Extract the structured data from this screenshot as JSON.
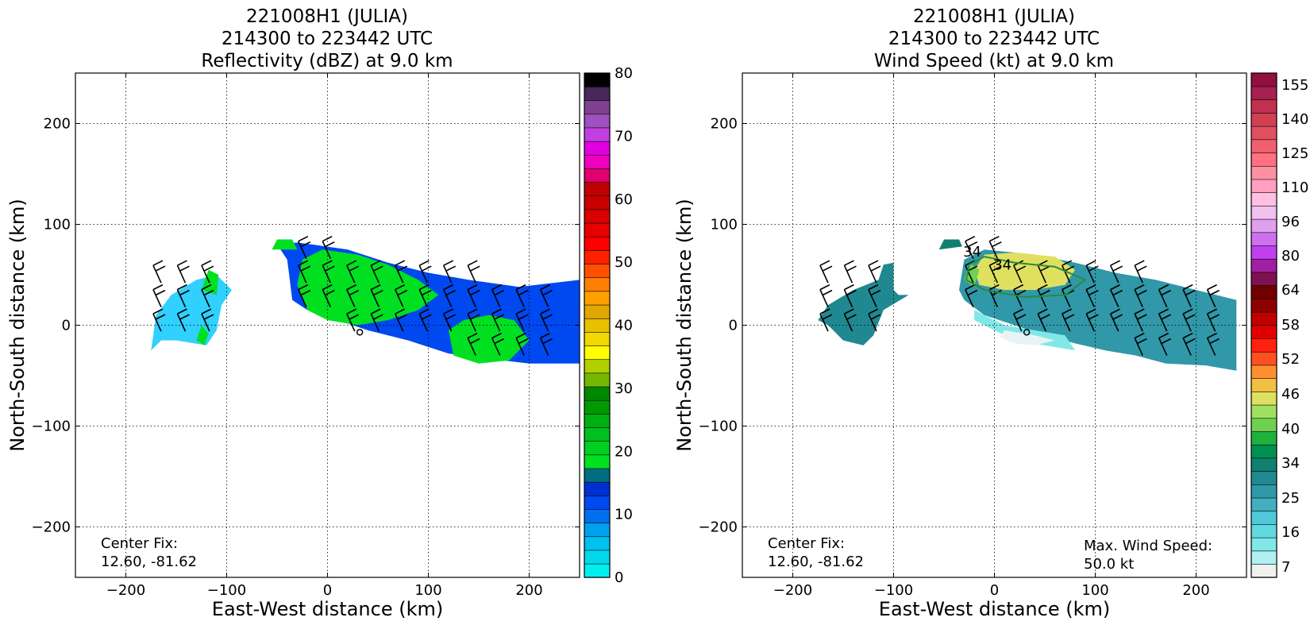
{
  "chart_data": [
    {
      "type": "heatmap",
      "title_lines": [
        "221008H1 (JULIA)",
        "214300 to 223442 UTC",
        "Reflectivity (dBZ) at 9.0 km"
      ],
      "xlabel": "East-West distance (km)",
      "ylabel": "North-South distance (km)",
      "xlim": [
        -250,
        250
      ],
      "ylim": [
        -250,
        250
      ],
      "x_ticks": [
        -200,
        -100,
        0,
        100,
        200
      ],
      "y_ticks": [
        -200,
        -100,
        0,
        100,
        200
      ],
      "grid": true,
      "annotations": [
        "Center Fix:",
        "12.60, -81.62"
      ],
      "colorbar": {
        "ticks": [
          0,
          10,
          20,
          30,
          40,
          50,
          60,
          70,
          80
        ],
        "colors": [
          "#00f0f0",
          "#00d8ec",
          "#00c0f0",
          "#00a0f0",
          "#0070f0",
          "#0048f0",
          "#0030d0",
          "#006e7e",
          "#00e020",
          "#00d020",
          "#00c020",
          "#00b010",
          "#009a00",
          "#008800",
          "#76b800",
          "#b0d000",
          "#ffff00",
          "#f0d800",
          "#e8c000",
          "#e0a800",
          "#ffa000",
          "#ff8000",
          "#ff5000",
          "#ff2000",
          "#ff0000",
          "#e80000",
          "#d80000",
          "#c80000",
          "#c00000",
          "#e00070",
          "#f000c0",
          "#e000e0",
          "#c040e0",
          "#a050c0",
          "#804090",
          "#482858",
          "#000000"
        ]
      },
      "regions": [
        {
          "name": "left-blob",
          "fill": "#30d0ff",
          "points": [
            [
              -175,
              -25
            ],
            [
              -170,
              10
            ],
            [
              -155,
              30
            ],
            [
              -130,
              45
            ],
            [
              -110,
              50
            ],
            [
              -95,
              35
            ],
            [
              -105,
              20
            ],
            [
              -110,
              -5
            ],
            [
              -120,
              -20
            ],
            [
              -150,
              -15
            ],
            [
              -165,
              -15
            ]
          ]
        },
        {
          "name": "left-core",
          "fill": "#00e020",
          "points": [
            [
              -125,
              35
            ],
            [
              -118,
              55
            ],
            [
              -108,
              50
            ],
            [
              -110,
              30
            ]
          ]
        },
        {
          "name": "left-core-2",
          "fill": "#00e020",
          "points": [
            [
              -130,
              -15
            ],
            [
              -125,
              0
            ],
            [
              -118,
              -8
            ],
            [
              -122,
              -20
            ]
          ]
        },
        {
          "name": "main-blue",
          "fill": "#0048f0",
          "points": [
            [
              -40,
              65
            ],
            [
              -50,
              80
            ],
            [
              -30,
              82
            ],
            [
              -15,
              80
            ],
            [
              20,
              75
            ],
            [
              60,
              62
            ],
            [
              100,
              52
            ],
            [
              140,
              45
            ],
            [
              190,
              38
            ],
            [
              250,
              45
            ],
            [
              250,
              -38
            ],
            [
              200,
              -38
            ],
            [
              150,
              -32
            ],
            [
              120,
              -28
            ],
            [
              80,
              -15
            ],
            [
              40,
              -5
            ],
            [
              10,
              5
            ],
            [
              -20,
              15
            ],
            [
              -35,
              25
            ],
            [
              -38,
              50
            ]
          ]
        },
        {
          "name": "main-green",
          "fill": "#00e020",
          "points": [
            [
              -30,
              40
            ],
            [
              -25,
              65
            ],
            [
              -5,
              75
            ],
            [
              30,
              70
            ],
            [
              60,
              60
            ],
            [
              90,
              45
            ],
            [
              110,
              30
            ],
            [
              90,
              15
            ],
            [
              60,
              5
            ],
            [
              30,
              0
            ],
            [
              0,
              5
            ],
            [
              -20,
              15
            ]
          ]
        },
        {
          "name": "east-green",
          "fill": "#00e020",
          "points": [
            [
              120,
              -5
            ],
            [
              135,
              5
            ],
            [
              160,
              10
            ],
            [
              185,
              5
            ],
            [
              200,
              -15
            ],
            [
              180,
              -35
            ],
            [
              150,
              -38
            ],
            [
              125,
              -30
            ]
          ]
        },
        {
          "name": "north-green-patch",
          "fill": "#00e020",
          "points": [
            [
              -55,
              75
            ],
            [
              -50,
              85
            ],
            [
              -35,
              85
            ],
            [
              -30,
              75
            ]
          ]
        }
      ]
    },
    {
      "type": "heatmap",
      "title_lines": [
        "221008H1 (JULIA)",
        "214300 to 223442 UTC",
        "Wind Speed (kt) at 9.0 km"
      ],
      "xlabel": "East-West distance (km)",
      "ylabel": "North-South distance (km)",
      "xlim": [
        -250,
        250
      ],
      "ylim": [
        -250,
        250
      ],
      "x_ticks": [
        -200,
        -100,
        0,
        100,
        200
      ],
      "y_ticks": [
        -200,
        -100,
        0,
        100,
        200
      ],
      "grid": true,
      "annotations": [
        "Center Fix:",
        "12.60, -81.62"
      ],
      "max_wind": [
        "Max. Wind Speed:",
        "50.0 kt"
      ],
      "contour_labels": [
        {
          "text": "34",
          "x": -22,
          "y": 68
        },
        {
          "text": "34",
          "x": 8,
          "y": 55
        }
      ],
      "colorbar": {
        "ticks": [
          7,
          16,
          25,
          34,
          40,
          46,
          52,
          58,
          64,
          80,
          96,
          110,
          125,
          140,
          155
        ],
        "colors": [
          "#f0f0f0",
          "#b0f0f0",
          "#80e8e8",
          "#60d8e0",
          "#50c8d8",
          "#40b0c0",
          "#3098a8",
          "#208890",
          "#108070",
          "#009050",
          "#20b040",
          "#70d050",
          "#a0e060",
          "#e0e060",
          "#f0c040",
          "#ff9030",
          "#ff5020",
          "#ff2010",
          "#e00000",
          "#c00000",
          "#900000",
          "#700000",
          "#801050",
          "#a020a0",
          "#c040f0",
          "#d070f0",
          "#e0a0f0",
          "#f0c0f0",
          "#ffc0e0",
          "#ffa0c0",
          "#ff90a0",
          "#ff7080",
          "#f06070",
          "#e05060",
          "#d04050",
          "#c03050",
          "#a82050",
          "#901040"
        ]
      },
      "regions": [
        {
          "name": "west-teal",
          "fill": "#208890",
          "points": [
            [
              -175,
              5
            ],
            [
              -165,
              20
            ],
            [
              -140,
              35
            ],
            [
              -115,
              45
            ],
            [
              -110,
              60
            ],
            [
              -100,
              62
            ],
            [
              -100,
              35
            ],
            [
              -95,
              30
            ],
            [
              -85,
              30
            ],
            [
              -110,
              15
            ],
            [
              -120,
              -10
            ],
            [
              -130,
              -20
            ],
            [
              -150,
              -15
            ],
            [
              -165,
              0
            ]
          ]
        },
        {
          "name": "main-teal",
          "fill": "#3098a8",
          "points": [
            [
              -35,
              35
            ],
            [
              -30,
              65
            ],
            [
              -10,
              75
            ],
            [
              40,
              70
            ],
            [
              80,
              62
            ],
            [
              120,
              52
            ],
            [
              160,
              45
            ],
            [
              200,
              35
            ],
            [
              240,
              25
            ],
            [
              240,
              -45
            ],
            [
              210,
              -40
            ],
            [
              170,
              -38
            ],
            [
              140,
              -30
            ],
            [
              110,
              -25
            ],
            [
              80,
              -18
            ],
            [
              50,
              -10
            ],
            [
              20,
              0
            ],
            [
              -10,
              10
            ],
            [
              -30,
              25
            ]
          ]
        },
        {
          "name": "south-light",
          "fill": "#80e8e8",
          "points": [
            [
              -20,
              15
            ],
            [
              10,
              0
            ],
            [
              40,
              -5
            ],
            [
              70,
              -10
            ],
            [
              80,
              -25
            ],
            [
              50,
              -20
            ],
            [
              20,
              -15
            ],
            [
              0,
              -5
            ],
            [
              -20,
              5
            ]
          ]
        },
        {
          "name": "south-white",
          "fill": "#e8f4f4",
          "points": [
            [
              10,
              -5
            ],
            [
              40,
              -10
            ],
            [
              60,
              -15
            ],
            [
              40,
              -20
            ],
            [
              20,
              -18
            ],
            [
              5,
              -12
            ]
          ]
        },
        {
          "name": "yellow-max",
          "fill": "#e0e060",
          "points": [
            [
              -20,
              55
            ],
            [
              -10,
              70
            ],
            [
              20,
              72
            ],
            [
              60,
              68
            ],
            [
              80,
              55
            ],
            [
              70,
              40
            ],
            [
              40,
              35
            ],
            [
              10,
              35
            ],
            [
              -15,
              40
            ]
          ]
        },
        {
          "name": "green-band",
          "fill": "#70d050",
          "points": [
            [
              -30,
              45
            ],
            [
              -25,
              62
            ],
            [
              -15,
              55
            ],
            [
              -20,
              38
            ]
          ]
        },
        {
          "name": "north-patch",
          "fill": "#108070",
          "points": [
            [
              -55,
              75
            ],
            [
              -50,
              85
            ],
            [
              -35,
              85
            ],
            [
              -32,
              78
            ]
          ]
        }
      ]
    }
  ]
}
